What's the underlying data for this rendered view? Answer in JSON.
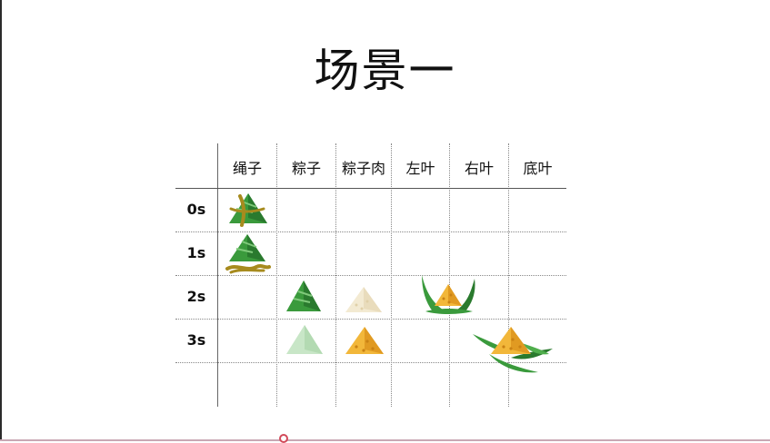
{
  "slide": {
    "title": "场景一"
  },
  "table": {
    "columns": [
      "绳子",
      "粽子",
      "粽子肉",
      "左叶",
      "右叶",
      "底叶"
    ],
    "rows": [
      "0s",
      "1s",
      "2s",
      "3s"
    ]
  },
  "icons": {
    "zongzi_with_rope": "zongzi-rope-icon",
    "zongzi_with_rope_falling": "zongzi-rope-falling-icon",
    "zongzi": "zongzi-icon",
    "zongzi_faded": "zongzi-faded-icon",
    "rice_pale": "rice-pale-icon",
    "rice_yellow": "rice-yellow-icon",
    "leaves_open": "leaves-open-icon",
    "leaves_flat": "leaves-flat-icon"
  },
  "colors": {
    "leaf_green": "#3a9a3c",
    "leaf_dark": "#2a7a2e",
    "rope": "#a78b1e",
    "rice_yellow": "#f2b73a",
    "rice_pale": "#f3ead2",
    "accent": "#d24a5a"
  }
}
